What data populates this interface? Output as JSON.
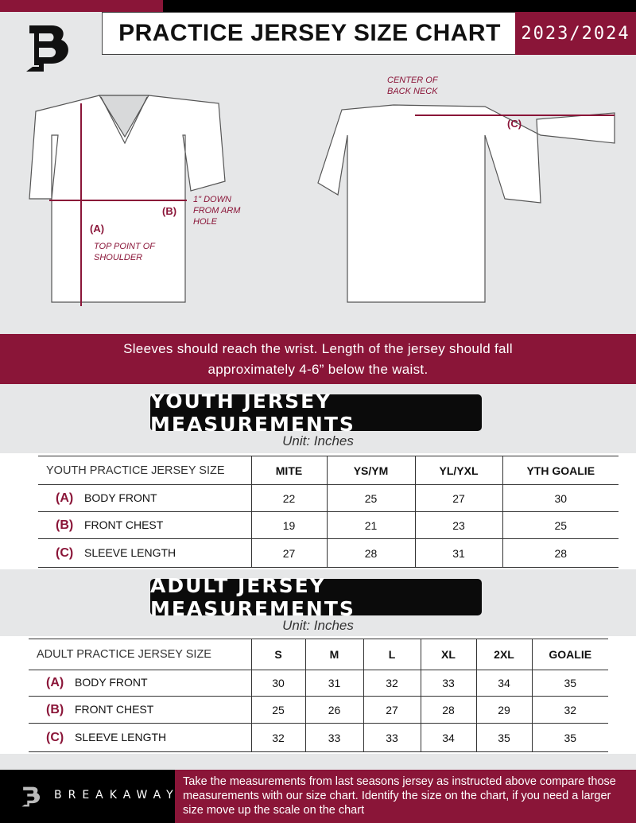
{
  "header": {
    "title": "PRACTICE JERSEY SIZE CHART",
    "season": "2023/2024"
  },
  "diagram": {
    "front_notes": {
      "a_label": "(A)",
      "a_note": "TOP POINT OF SHOULDER",
      "b_label": "(B)",
      "b_note": "1\" DOWN FROM ARM HOLE"
    },
    "back_notes": {
      "c_label": "(C)",
      "c_note": "CENTER OF BACK NECK"
    }
  },
  "banner": {
    "line1": "Sleeves should reach the wrist. Length of the jersey should fall",
    "line2": "approximately 4-6” below the waist."
  },
  "youth": {
    "title": "YOUTH JERSEY MEASUREMENTS",
    "unit": "Unit: Inches",
    "header": [
      "YOUTH PRACTICE JERSEY SIZE",
      "MITE",
      "YS/YM",
      "YL/YXL",
      "YTH GOALIE"
    ],
    "rows": [
      {
        "key": "(A)",
        "label": "BODY FRONT",
        "values": [
          "22",
          "25",
          "27",
          "30"
        ]
      },
      {
        "key": "(B)",
        "label": "FRONT CHEST",
        "values": [
          "19",
          "21",
          "23",
          "25"
        ]
      },
      {
        "key": "(C)",
        "label": "SLEEVE LENGTH",
        "values": [
          "27",
          "28",
          "31",
          "28"
        ]
      }
    ]
  },
  "adult": {
    "title": "ADULT JERSEY MEASUREMENTS",
    "unit": "Unit: Inches",
    "header": [
      "ADULT PRACTICE JERSEY SIZE",
      "S",
      "M",
      "L",
      "XL",
      "2XL",
      "GOALIE"
    ],
    "rows": [
      {
        "key": "(A)",
        "label": "BODY FRONT",
        "values": [
          "30",
          "31",
          "32",
          "33",
          "34",
          "35"
        ]
      },
      {
        "key": "(B)",
        "label": "FRONT CHEST",
        "values": [
          "25",
          "26",
          "27",
          "28",
          "29",
          "32"
        ]
      },
      {
        "key": "(C)",
        "label": "SLEEVE LENGTH",
        "values": [
          "32",
          "33",
          "33",
          "34",
          "35",
          "35"
        ]
      }
    ]
  },
  "footer": {
    "brand": "BREAKAWAY",
    "text": "Take the measurements from last seasons jersey as instructed above compare those measurements  with our size chart. Identify the size on the chart, if you need a larger size move up the scale on the chart"
  },
  "colors": {
    "accent": "#8a1538",
    "dark": "#000000",
    "background": "#e6e7e8"
  }
}
